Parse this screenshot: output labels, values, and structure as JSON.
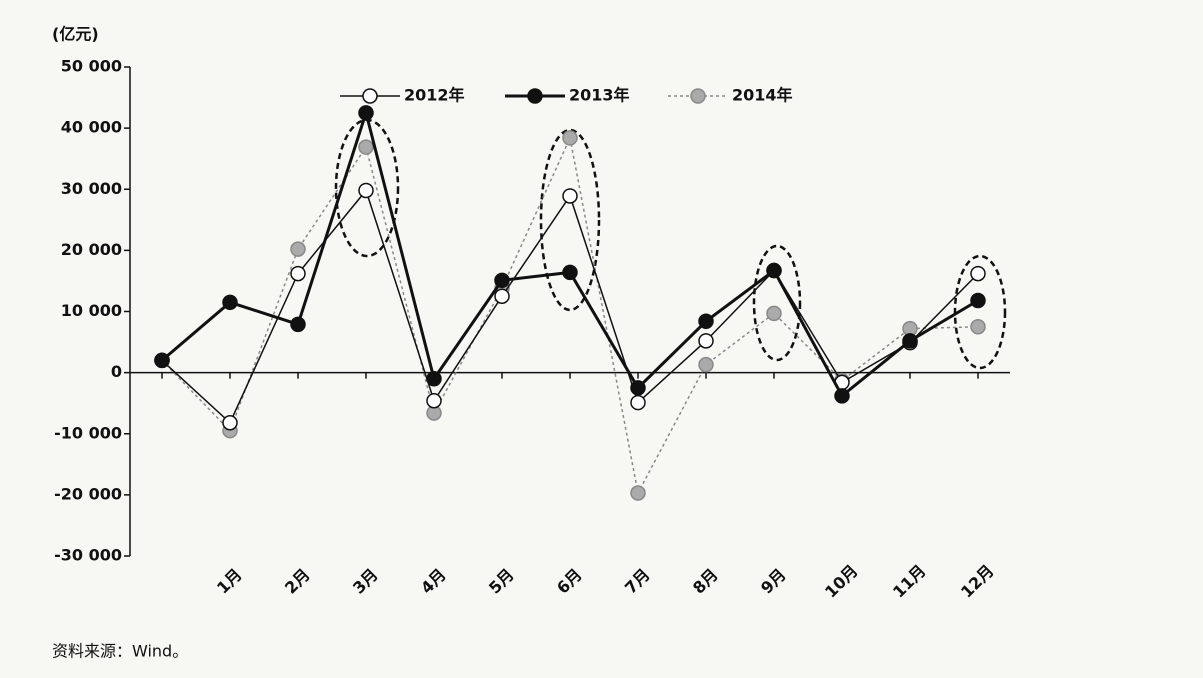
{
  "chart_data": {
    "type": "line",
    "ylabel": "(亿元)",
    "source": "资料来源：Wind。",
    "categories": [
      null,
      "1月",
      "2月",
      "3月",
      "4月",
      "5月",
      "6月",
      "7月",
      "8月",
      "9月",
      "10月",
      "11月",
      "12月"
    ],
    "series": [
      {
        "name": "2012年",
        "color": "#ffffff",
        "values": [
          2000,
          -8200,
          16200,
          29800,
          -4600,
          12500,
          28900,
          -4900,
          5200,
          16700,
          -1600,
          4900,
          16200
        ]
      },
      {
        "name": "2013年",
        "color": "#111111",
        "values": [
          2000,
          11500,
          7900,
          42500,
          -1000,
          15100,
          16400,
          -2500,
          8400,
          16700,
          -3800,
          5200,
          11800
        ]
      },
      {
        "name": "2014年",
        "color": "#aaaaaa",
        "values": [
          2000,
          -9500,
          20200,
          36900,
          -6600,
          13800,
          38400,
          -19700,
          1300,
          9700,
          -1300,
          7200,
          7500
        ]
      }
    ],
    "ylim": [
      -30000,
      50000
    ],
    "yticks": [
      {
        "value": -30000,
        "label": "-30 000"
      },
      {
        "value": -20000,
        "label": "-20 000"
      },
      {
        "value": -10000,
        "label": "-10 000"
      },
      0,
      {
        "value": 10000,
        "label": "10 000"
      },
      {
        "value": 20000,
        "label": "20 000"
      },
      {
        "value": 30000,
        "label": "30 000"
      },
      {
        "value": 40000,
        "label": "40 000"
      },
      {
        "value": 50000,
        "label": "50 000"
      }
    ]
  }
}
